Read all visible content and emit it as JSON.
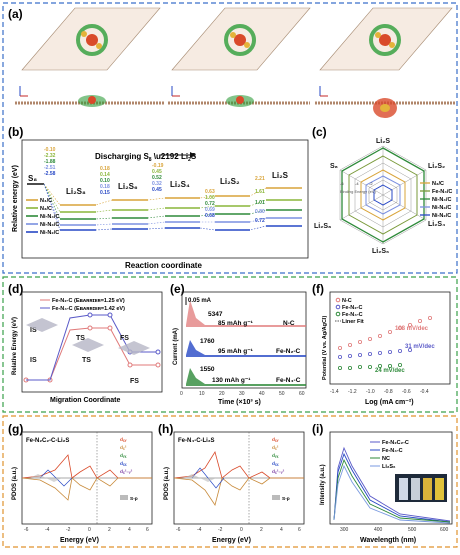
{
  "panels": {
    "a": {
      "label": "(a)"
    },
    "b": {
      "label": "(b)",
      "title_left": "Discharging S",
      "title_sub": "8",
      "title_right": "Li",
      "title_right_sub": "2",
      "title_right_tail": "S",
      "ylabel": "Relative energy (eV)",
      "xlabel": "Reaction coordinate",
      "legend": [
        "N₄/C",
        "N₃/C",
        "Ni-N₄/C",
        "Ni-N₃/C",
        "Ni-N₂/C"
      ],
      "species": [
        "S₈",
        "Li₂S₈",
        "Li₂S₆",
        "Li₂S₄",
        "Li₂S₂",
        "Li₂S"
      ],
      "values_col1": [
        "-0.10",
        "-2.32",
        "-1.88",
        "-2.51",
        "-2.58"
      ],
      "values_col2": [
        "0.18",
        "0.14",
        "0.10",
        "0.18",
        "0.15"
      ],
      "values_col3": [
        "-0.19",
        "0.45",
        "0.52",
        "0.32",
        "0.45"
      ],
      "values_col4": [
        "0.63",
        "1.00",
        "0.72",
        "0.69",
        "0.68"
      ],
      "values_col5": [
        "2.21",
        "1.61",
        "1.01",
        "0.80",
        "0.72"
      ]
    },
    "c": {
      "label": "(c)",
      "axes": [
        "Li₂S",
        "Li₂S₂",
        "Li₂S₄",
        "Li₂S₆",
        "Li₂S₈",
        "S₈"
      ],
      "center_label": "Binding Energy (eV)",
      "ticks": [
        "-6",
        "-4",
        "-2"
      ],
      "legend": [
        "N₃/C",
        "Fe-N₄/C",
        "Ni-N₄/C",
        "Ni-N₃/C",
        "Ni-N₂/C"
      ]
    },
    "d": {
      "label": "(d)",
      "legend": [
        "Fe-N₂-C (Eʙᴀʀʀɪᴇʀ=1.25 eV)",
        "Fe-N₄-C (Eʙᴀʀʀɪᴇʀ=1.42 eV)"
      ],
      "ylabel": "Relative Energy (eV)",
      "xlabel": "Migration Coordinate",
      "states": [
        "IS",
        "TS",
        "FS",
        "IS",
        "TS",
        "FS"
      ]
    },
    "e": {
      "label": "(e)",
      "ylabel": "Current (mA)",
      "xlabel": "Time (×10³ s)",
      "scale": "0.05 mA",
      "rows": [
        {
          "peak": "5347",
          "cap": "85 mAh g⁻¹",
          "name": "N-C"
        },
        {
          "peak": "1760",
          "cap": "95 mAh g⁻¹",
          "name": "Fe-N₂-C"
        },
        {
          "peak": "1550",
          "cap": "130 mAh g⁻¹",
          "name": "Fe-N₄-C"
        }
      ],
      "xticks": [
        "0",
        "10",
        "20",
        "30",
        "40",
        "50",
        "60"
      ]
    },
    "f": {
      "label": "(f)",
      "ylabel": "Potential (V vs. Ag/AgCl)",
      "xlabel": "Log (mA cm⁻²)",
      "legend": [
        "N-C",
        "Fe-N₂-C",
        "Fe-N₄-C",
        "Liner Fit"
      ],
      "slopes": [
        "108 mV/dec",
        "31 mV/dec",
        "24 mV/dec"
      ],
      "xticks": [
        "-1.4",
        "-1.2",
        "-1.0",
        "-0.8",
        "-0.6",
        "-0.4"
      ]
    },
    "g": {
      "label": "(g)",
      "title": "Fe-N₂C₂-C-Li₂S",
      "ylabel": "PDOS (a.u.)",
      "xlabel": "Energy (eV)",
      "legend": [
        "dᵪᵧ",
        "dᵪ²",
        "dᵧᵪ",
        "dᵪᵪ",
        "dᵪ²₋ᵧ²"
      ],
      "legend_sp": "S-p",
      "xticks": [
        "-6",
        "-4",
        "-2",
        "0",
        "2",
        "4",
        "6"
      ]
    },
    "h": {
      "label": "(h)",
      "title": "Fe-N₄-C-Li₂S",
      "ylabel": "PDOS (a.u.)",
      "xlabel": "Energy (eV)",
      "legend_sp": "S-p",
      "xticks": [
        "-6",
        "-4",
        "-2",
        "0",
        "2",
        "4",
        "6"
      ]
    },
    "i": {
      "label": "(i)",
      "ylabel": "Intensity (a.u.)",
      "xlabel": "Wavelength (nm)",
      "legend": [
        "Fe-N₂C₂-C",
        "Fe-N₄-C",
        "NC",
        "Li₂S₆"
      ],
      "xticks": [
        "300",
        "400",
        "500",
        "600"
      ]
    }
  },
  "colors": {
    "frame_blue": "#3a6fc9",
    "frame_green": "#3aa14a",
    "frame_orange": "#e0922e"
  }
}
